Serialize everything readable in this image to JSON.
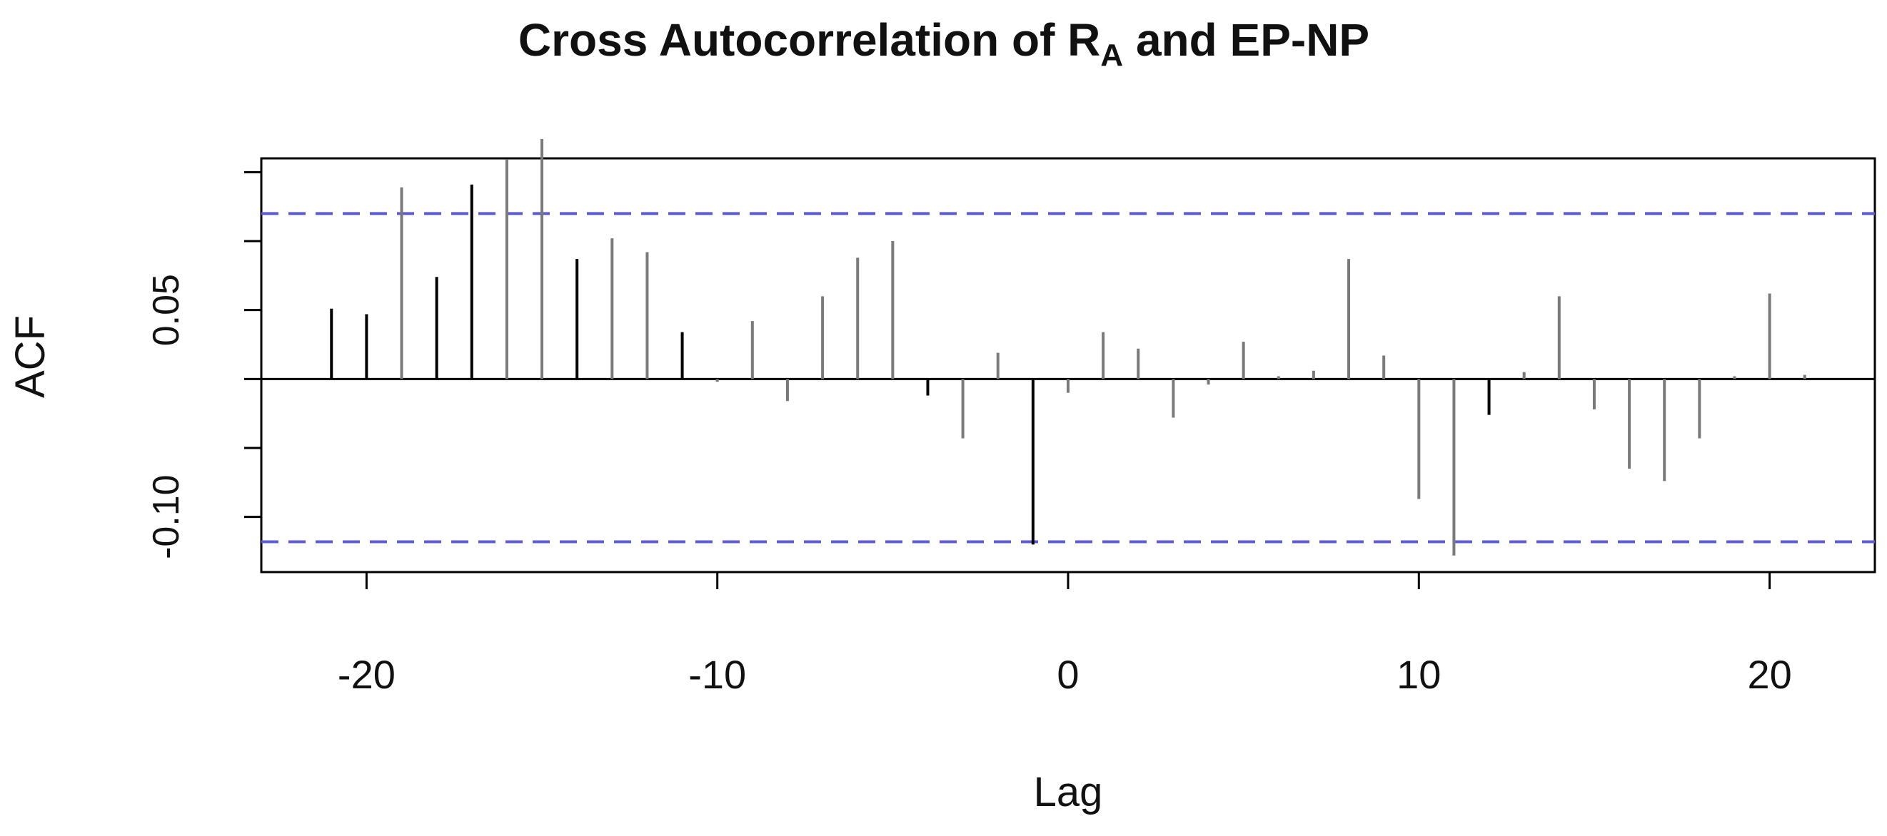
{
  "chart_data": {
    "type": "bar",
    "title": "Cross Autocorrelation of R",
    "title_subscript": "A",
    "title_suffix": " and EP-NP",
    "xlabel": "Lag",
    "ylabel": "ACF",
    "xlim": [
      -23,
      23
    ],
    "ylim": [
      -0.14,
      0.16
    ],
    "x_ticks": [
      -20,
      -10,
      0,
      10,
      20
    ],
    "x_tick_labels": [
      "-20",
      "-10",
      "0",
      "10",
      "20"
    ],
    "y_ticks": [
      -0.15,
      -0.1,
      -0.05,
      0.0,
      0.05,
      0.1,
      0.15
    ],
    "y_tick_labels": [
      "",
      "-0.10",
      "",
      "",
      "0.05",
      "",
      ""
    ],
    "confidence_band": {
      "upper": 0.12,
      "lower": -0.118,
      "style": "dashed"
    },
    "colors": {
      "bars": "#7a7a7a",
      "bars_dark": "#000000",
      "confidence": "#5b5bd6",
      "axis": "#000000"
    },
    "series": [
      {
        "x": [
          -21,
          -20,
          -19,
          -18,
          -17,
          -16,
          -15,
          -14,
          -13,
          -12,
          -11,
          -10,
          -9,
          -8,
          -7,
          -6,
          -5,
          -4,
          -3,
          -2,
          -1,
          0,
          1,
          2,
          3,
          4,
          5,
          6,
          7,
          8,
          9,
          10,
          11,
          12,
          13,
          14,
          15,
          16,
          17,
          18,
          19,
          20,
          21
        ],
        "values": [
          0.051,
          0.047,
          0.139,
          0.074,
          0.141,
          0.159,
          0.174,
          0.087,
          0.102,
          0.092,
          0.034,
          -0.002,
          0.042,
          -0.016,
          0.06,
          0.088,
          0.1,
          -0.012,
          -0.043,
          0.019,
          -0.12,
          -0.01,
          0.034,
          0.022,
          -0.028,
          -0.004,
          0.027,
          0.002,
          0.006,
          0.087,
          0.017,
          -0.087,
          -0.128,
          -0.026,
          0.005,
          0.06,
          -0.022,
          -0.065,
          -0.074,
          -0.043,
          0.002,
          0.062,
          0.003
        ]
      }
    ]
  }
}
